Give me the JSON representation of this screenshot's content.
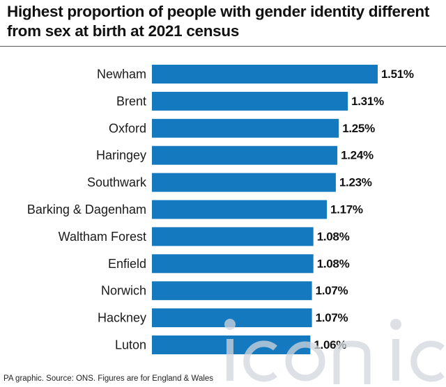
{
  "chart_data": {
    "type": "bar",
    "orientation": "horizontal",
    "title": "Highest proportion of people with gender identity different from sex at birth at 2021 census",
    "categories": [
      "Newham",
      "Brent",
      "Oxford",
      "Haringey",
      "Southwark",
      "Barking & Dagenham",
      "Waltham Forest",
      "Enfield",
      "Norwich",
      "Hackney",
      "Luton"
    ],
    "values": [
      1.51,
      1.31,
      1.25,
      1.24,
      1.23,
      1.17,
      1.08,
      1.08,
      1.07,
      1.07,
      1.06
    ],
    "labels": [
      "1.51%",
      "1.31%",
      "1.25%",
      "1.24%",
      "1.23%",
      "1.17%",
      "1.08%",
      "1.08%",
      "1.07%",
      "1.07%",
      "1.06%"
    ],
    "xlim": [
      0,
      1.51
    ],
    "grid": false,
    "bar_color": "#1479be"
  },
  "footer": "PA graphic. Source: ONS. Figures are for England & Wales",
  "watermark": {
    "text": "iconic",
    "color": "#d2d6db"
  }
}
